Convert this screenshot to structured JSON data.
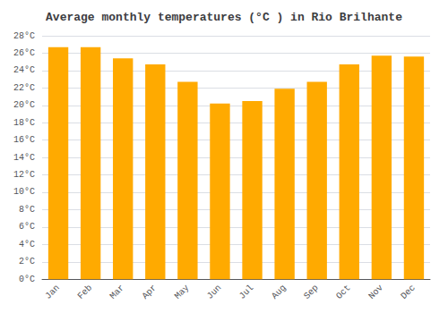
{
  "chart_data": {
    "type": "bar",
    "title": "Average monthly temperatures (°C ) in Rio Brilhante",
    "categories": [
      "Jan",
      "Feb",
      "Mar",
      "Apr",
      "May",
      "Jun",
      "Jul",
      "Aug",
      "Sep",
      "Oct",
      "Nov",
      "Dec"
    ],
    "values": [
      26.7,
      26.7,
      25.4,
      24.7,
      22.7,
      20.2,
      20.5,
      21.9,
      22.7,
      24.7,
      25.7,
      25.6
    ],
    "color": "#FFAA00",
    "ylim": [
      0,
      28
    ],
    "yticks": [
      {
        "value": 0,
        "label": "0°C"
      },
      {
        "value": 2,
        "label": "2°C"
      },
      {
        "value": 4,
        "label": "4°C"
      },
      {
        "value": 6,
        "label": "6°C"
      },
      {
        "value": 8,
        "label": "8°C"
      },
      {
        "value": 10,
        "label": "10°C"
      },
      {
        "value": 12,
        "label": "12°C"
      },
      {
        "value": 14,
        "label": "14°C"
      },
      {
        "value": 16,
        "label": "16°C"
      },
      {
        "value": 18,
        "label": "18°C"
      },
      {
        "value": 20,
        "label": "20°C"
      },
      {
        "value": 22,
        "label": "22°C"
      },
      {
        "value": 24,
        "label": "24°C"
      },
      {
        "value": 26,
        "label": "26°C"
      },
      {
        "value": 28,
        "label": "28°C"
      }
    ],
    "grid": true
  }
}
